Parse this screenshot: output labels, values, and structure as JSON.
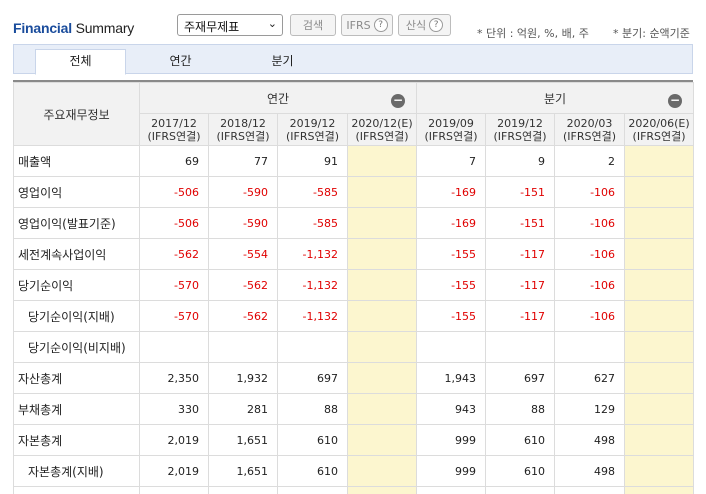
{
  "header": {
    "title_part1": "Financial",
    "title_part2": " Summary",
    "select_value": "주재무제표",
    "search_label": "검색",
    "ifrs_label": "IFRS",
    "formula_label": "산식",
    "help_icon": "?",
    "unit_note": "* 단위 : 억원, %, 배, 주",
    "quarter_note": "* 분기: 순액기준"
  },
  "tabs": [
    {
      "label": "전체",
      "active": true
    },
    {
      "label": "연간",
      "active": false
    },
    {
      "label": "분기",
      "active": false
    }
  ],
  "table": {
    "row_header_label": "주요재무정보",
    "group_annual": "연간",
    "group_quarter": "분기",
    "collapse_symbol": "−",
    "periods": [
      {
        "date": "2017/12",
        "basis": "(IFRS연결)"
      },
      {
        "date": "2018/12",
        "basis": "(IFRS연결)"
      },
      {
        "date": "2019/12",
        "basis": "(IFRS연결)"
      },
      {
        "date": "2020/12(E)",
        "basis": "(IFRS연결)"
      },
      {
        "date": "2019/09",
        "basis": "(IFRS연결)"
      },
      {
        "date": "2019/12",
        "basis": "(IFRS연결)"
      },
      {
        "date": "2020/03",
        "basis": "(IFRS연결)"
      },
      {
        "date": "2020/06(E)",
        "basis": "(IFRS연결)"
      }
    ],
    "rows": [
      {
        "label": "매출액",
        "indent": false,
        "values": [
          "69",
          "77",
          "91",
          "",
          "7",
          "9",
          "2",
          ""
        ]
      },
      {
        "label": "영업이익",
        "indent": false,
        "values": [
          "-506",
          "-590",
          "-585",
          "",
          "-169",
          "-151",
          "-106",
          ""
        ]
      },
      {
        "label": "영업이익(발표기준)",
        "indent": false,
        "values": [
          "-506",
          "-590",
          "-585",
          "",
          "-169",
          "-151",
          "-106",
          ""
        ]
      },
      {
        "label": "세전계속사업이익",
        "indent": false,
        "values": [
          "-562",
          "-554",
          "-1,132",
          "",
          "-155",
          "-117",
          "-106",
          ""
        ]
      },
      {
        "label": "당기순이익",
        "indent": false,
        "values": [
          "-570",
          "-562",
          "-1,132",
          "",
          "-155",
          "-117",
          "-106",
          ""
        ]
      },
      {
        "label": "당기순이익(지배)",
        "indent": true,
        "values": [
          "-570",
          "-562",
          "-1,132",
          "",
          "-155",
          "-117",
          "-106",
          ""
        ]
      },
      {
        "label": "당기순이익(비지배)",
        "indent": true,
        "values": [
          "",
          "",
          "",
          "",
          "",
          "",
          "",
          ""
        ]
      },
      {
        "label": "자산총계",
        "indent": false,
        "values": [
          "2,350",
          "1,932",
          "697",
          "",
          "1,943",
          "697",
          "627",
          ""
        ]
      },
      {
        "label": "부채총계",
        "indent": false,
        "values": [
          "330",
          "281",
          "88",
          "",
          "943",
          "88",
          "129",
          ""
        ]
      },
      {
        "label": "자본총계",
        "indent": false,
        "values": [
          "2,019",
          "1,651",
          "610",
          "",
          "999",
          "610",
          "498",
          ""
        ]
      },
      {
        "label": "자본총계(지배)",
        "indent": true,
        "values": [
          "2,019",
          "1,651",
          "610",
          "",
          "999",
          "610",
          "498",
          ""
        ]
      },
      {
        "label": "",
        "indent": false,
        "values": [
          "",
          "",
          "",
          "",
          "",
          "",
          "",
          ""
        ]
      }
    ],
    "colors": {
      "negative": "#e00000",
      "estimate_bg": "#fcf6cf",
      "brand_blue": "#1a4c9c"
    }
  }
}
